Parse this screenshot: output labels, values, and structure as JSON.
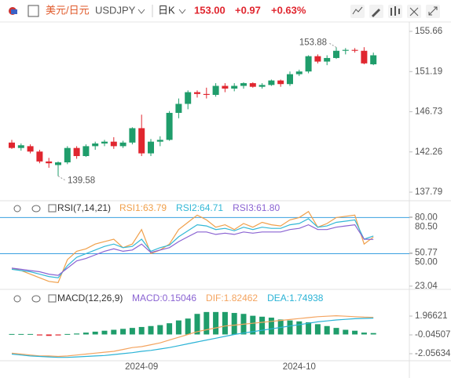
{
  "header": {
    "pair": "美元/日元",
    "symbol": "USDJPY",
    "period": "日K",
    "price": "153.00",
    "change": "+0.97",
    "change_pct": "+0.63%"
  },
  "chart_data": [
    {
      "type": "candlestick",
      "up_color": "#1f9d6b",
      "down_color": "#e0262f",
      "categories": [
        null,
        null,
        null,
        null,
        null,
        null,
        null,
        null,
        null,
        null,
        null,
        null,
        null,
        null,
        "2024-09",
        null,
        null,
        null,
        null,
        null,
        null,
        null,
        null,
        null,
        null,
        null,
        null,
        null,
        null,
        null,
        null,
        "2024-10",
        null,
        null,
        null,
        null,
        null,
        null,
        null,
        null
      ],
      "candles": [
        [
          143.3,
          143.6,
          142.6,
          142.7
        ],
        [
          142.7,
          143.2,
          142.4,
          143.0
        ],
        [
          142.9,
          143.1,
          142.1,
          142.3
        ],
        [
          142.3,
          142.5,
          141.0,
          141.2
        ],
        [
          141.2,
          141.6,
          140.5,
          141.0
        ],
        [
          140.8,
          141.2,
          139.58,
          141.1
        ],
        [
          141.1,
          142.9,
          140.9,
          142.7
        ],
        [
          142.7,
          142.9,
          141.5,
          141.8
        ],
        [
          141.8,
          143.1,
          141.7,
          142.9
        ],
        [
          142.9,
          143.4,
          142.5,
          143.2
        ],
        [
          143.2,
          143.6,
          142.9,
          143.4
        ],
        [
          143.4,
          143.9,
          142.6,
          142.9
        ],
        [
          142.9,
          143.5,
          142.7,
          143.3
        ],
        [
          143.3,
          145.0,
          143.1,
          144.9
        ],
        [
          144.9,
          146.4,
          141.8,
          142.1
        ],
        [
          142.1,
          143.7,
          141.8,
          143.4
        ],
        [
          143.4,
          144.0,
          142.9,
          143.6
        ],
        [
          143.6,
          146.8,
          143.5,
          146.6
        ],
        [
          146.6,
          148.2,
          146.0,
          147.6
        ],
        [
          147.6,
          149.1,
          147.0,
          148.9
        ],
        [
          148.9,
          149.1,
          148.3,
          148.7
        ],
        [
          148.7,
          149.4,
          148.2,
          148.6
        ],
        [
          148.6,
          149.9,
          148.4,
          149.6
        ],
        [
          149.6,
          149.9,
          148.9,
          149.3
        ],
        [
          149.3,
          149.9,
          149.0,
          149.6
        ],
        [
          149.6,
          150.0,
          149.3,
          149.9
        ],
        [
          149.9,
          150.0,
          149.4,
          149.5
        ],
        [
          149.5,
          149.9,
          149.3,
          149.7
        ],
        [
          149.7,
          150.3,
          149.6,
          150.2
        ],
        [
          150.2,
          150.3,
          149.5,
          149.8
        ],
        [
          149.8,
          151.2,
          149.6,
          150.9
        ],
        [
          150.9,
          151.4,
          150.7,
          151.2
        ],
        [
          151.2,
          153.0,
          151.0,
          152.9
        ],
        [
          152.9,
          153.1,
          152.1,
          152.3
        ],
        [
          152.3,
          153.0,
          151.9,
          152.7
        ],
        [
          152.7,
          153.88,
          152.6,
          153.5
        ],
        [
          153.5,
          153.8,
          153.1,
          153.6
        ],
        [
          153.6,
          153.8,
          153.3,
          153.5
        ],
        [
          153.5,
          153.9,
          152.0,
          152.1
        ],
        [
          152.0,
          153.3,
          151.9,
          153.0
        ]
      ],
      "annotations": [
        {
          "label": "153.88",
          "value": 153.88
        },
        {
          "label": "139.58",
          "value": 139.58
        }
      ],
      "ylim": [
        136.92,
        156.53
      ],
      "yticks": [
        155.66,
        151.19,
        146.73,
        142.26,
        137.79
      ]
    },
    {
      "type": "line",
      "title": "RSI(7,14,21)",
      "series": [
        {
          "name": "RSI1:63.79",
          "color": "#f0a04b",
          "values": [
            38,
            36,
            33,
            30,
            27,
            26,
            45,
            52,
            54,
            58,
            60,
            62,
            55,
            58,
            70,
            50,
            53,
            58,
            70,
            76,
            82,
            78,
            72,
            74,
            70,
            75,
            72,
            76,
            74,
            73,
            78,
            80,
            85,
            72,
            75,
            80,
            81,
            82,
            58,
            63.79
          ]
        },
        {
          "name": "RSI2:64.71",
          "color": "#32b8d6",
          "values": [
            37,
            36,
            35,
            33,
            31,
            30,
            40,
            47,
            50,
            53,
            56,
            58,
            55,
            56,
            62,
            52,
            55,
            57,
            64,
            69,
            74,
            73,
            70,
            71,
            69,
            72,
            70,
            72,
            71,
            71,
            74,
            75,
            79,
            72,
            73,
            76,
            77,
            78,
            62,
            64.71
          ]
        },
        {
          "name": "RSI3:61.80",
          "color": "#8a63d2",
          "values": [
            38,
            37,
            36,
            35,
            33,
            32,
            38,
            44,
            46,
            49,
            52,
            54,
            52,
            53,
            58,
            51,
            53,
            55,
            60,
            64,
            68,
            68,
            66,
            67,
            66,
            68,
            67,
            68,
            68,
            68,
            70,
            71,
            74,
            70,
            70,
            72,
            73,
            74,
            62,
            61.8
          ]
        }
      ],
      "ref_lines": [
        80,
        50
      ],
      "ref_color": "#3aa0e0",
      "ylim": [
        21,
        90
      ],
      "yticks": [
        {
          "value": 80,
          "label": "80.00"
        },
        {
          "value": 80.5,
          "label": "80.50"
        },
        {
          "value": 50.77,
          "label": "50.77"
        },
        {
          "value": 50,
          "label": "50.00"
        },
        23.04
      ]
    },
    {
      "type": "macd",
      "title": "MACD(12,26,9)",
      "histogram": {
        "name": "MACD:0.15046",
        "color": "#8a63d2",
        "up_color": "#1f9d6b",
        "down_color": "#e0262f",
        "values": [
          0.05,
          0.05,
          0.05,
          -0.1,
          -0.15,
          -0.1,
          0.05,
          0.1,
          0.2,
          0.3,
          0.4,
          0.5,
          0.6,
          0.7,
          0.8,
          0.9,
          1.0,
          1.2,
          1.5,
          1.7,
          2.2,
          2.4,
          2.4,
          2.4,
          2.3,
          2.2,
          2.0,
          1.9,
          1.8,
          1.6,
          1.5,
          1.4,
          1.3,
          1.1,
          0.9,
          0.7,
          0.5,
          0.4,
          0.2,
          0.15046
        ]
      },
      "series": [
        {
          "name": "DIF:1.82462",
          "color": "#f4a460",
          "values": [
            -2.0,
            -2.1,
            -2.2,
            -2.3,
            -2.3,
            -2.35,
            -2.3,
            -2.2,
            -2.1,
            -2.0,
            -1.9,
            -1.8,
            -1.6,
            -1.4,
            -1.3,
            -1.1,
            -0.9,
            -0.6,
            -0.3,
            0.0,
            0.3,
            0.5,
            0.7,
            0.9,
            1.0,
            1.1,
            1.2,
            1.3,
            1.4,
            1.5,
            1.6,
            1.7,
            1.8,
            1.9,
            1.95,
            2.0,
            1.95,
            1.9,
            1.85,
            1.82462
          ]
        },
        {
          "name": "DEA:1.74938",
          "color": "#2bb3d6",
          "values": [
            -2.1,
            -2.2,
            -2.3,
            -2.35,
            -2.4,
            -2.45,
            -2.45,
            -2.4,
            -2.35,
            -2.3,
            -2.25,
            -2.15,
            -2.05,
            -1.95,
            -1.8,
            -1.7,
            -1.55,
            -1.4,
            -1.2,
            -1.0,
            -0.8,
            -0.6,
            -0.4,
            -0.2,
            0.0,
            0.15,
            0.3,
            0.45,
            0.6,
            0.75,
            0.9,
            1.05,
            1.2,
            1.35,
            1.45,
            1.55,
            1.62,
            1.68,
            1.72,
            1.74938
          ]
        }
      ],
      "ylim": [
        -2.81,
        4.4
      ],
      "yticks": [
        1.96621,
        -0.04507,
        -2.05634
      ]
    }
  ]
}
